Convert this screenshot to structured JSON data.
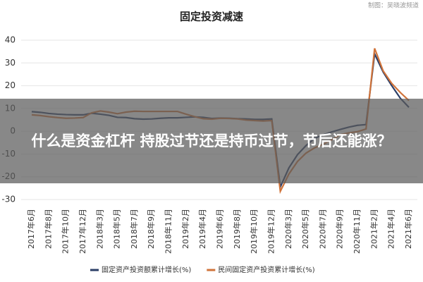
{
  "chart_data": {
    "type": "line",
    "title": "固定投资减速",
    "source": "制图：吴晓波频道",
    "categories": [
      "2017年6月",
      null,
      "2017年8月",
      null,
      "2017年10月",
      null,
      "2017年12月",
      null,
      "2018年3月",
      null,
      "2018年5月",
      null,
      "2018年7月",
      null,
      "2018年9月",
      null,
      "2018年11月",
      null,
      "2019年2月",
      null,
      "2019年4月",
      null,
      "2019年6月",
      null,
      "2019年8月",
      null,
      "2019年10月",
      null,
      "2019年12月",
      null,
      "2020年3月",
      null,
      "2020年5月",
      null,
      "2020年7月",
      null,
      "2020年9月",
      null,
      "2020年11月",
      null,
      "2021年2月",
      null,
      "2021年4月",
      null,
      "2021年6月"
    ],
    "series": [
      {
        "name": "固定资产投资额累计增长(%)",
        "color": "#2b3e66",
        "values": [
          8.6,
          8.3,
          7.8,
          7.5,
          7.3,
          7.2,
          7.2,
          7.9,
          7.5,
          7.0,
          6.1,
          6.0,
          5.5,
          5.3,
          5.4,
          5.7,
          5.9,
          5.9,
          6.1,
          6.3,
          6.1,
          5.6,
          5.8,
          5.7,
          5.5,
          5.4,
          5.2,
          5.2,
          5.4,
          -24.5,
          -16.1,
          -10.3,
          -6.3,
          -3.1,
          -1.6,
          -0.3,
          0.8,
          1.8,
          2.6,
          2.9,
          34,
          26,
          20,
          14.5,
          10.5
        ]
      },
      {
        "name": "民间固定资产投资累计增长(%)",
        "color": "#d0733a",
        "values": [
          7.2,
          6.9,
          6.4,
          6.0,
          5.7,
          5.8,
          6.0,
          8.1,
          8.9,
          8.4,
          7.7,
          8.4,
          8.8,
          8.7,
          8.7,
          8.7,
          8.7,
          8.7,
          7.5,
          6.4,
          5.5,
          5.3,
          5.7,
          5.6,
          5.4,
          4.9,
          4.7,
          4.5,
          4.7,
          -26.4,
          -18.8,
          -13.3,
          -9.6,
          -7.3,
          -5.7,
          -3.8,
          -1.5,
          -0.7,
          -0.2,
          1.0,
          36.4,
          26.5,
          21,
          17,
          13.5
        ]
      }
    ],
    "ylim": [
      -30,
      40
    ],
    "yticks": [
      -30,
      -20,
      -10,
      0,
      10,
      20,
      30,
      40
    ],
    "grid": true
  },
  "overlay_text": "什么是资金杠杆 持股过节还是持币过节，节后还能涨？"
}
